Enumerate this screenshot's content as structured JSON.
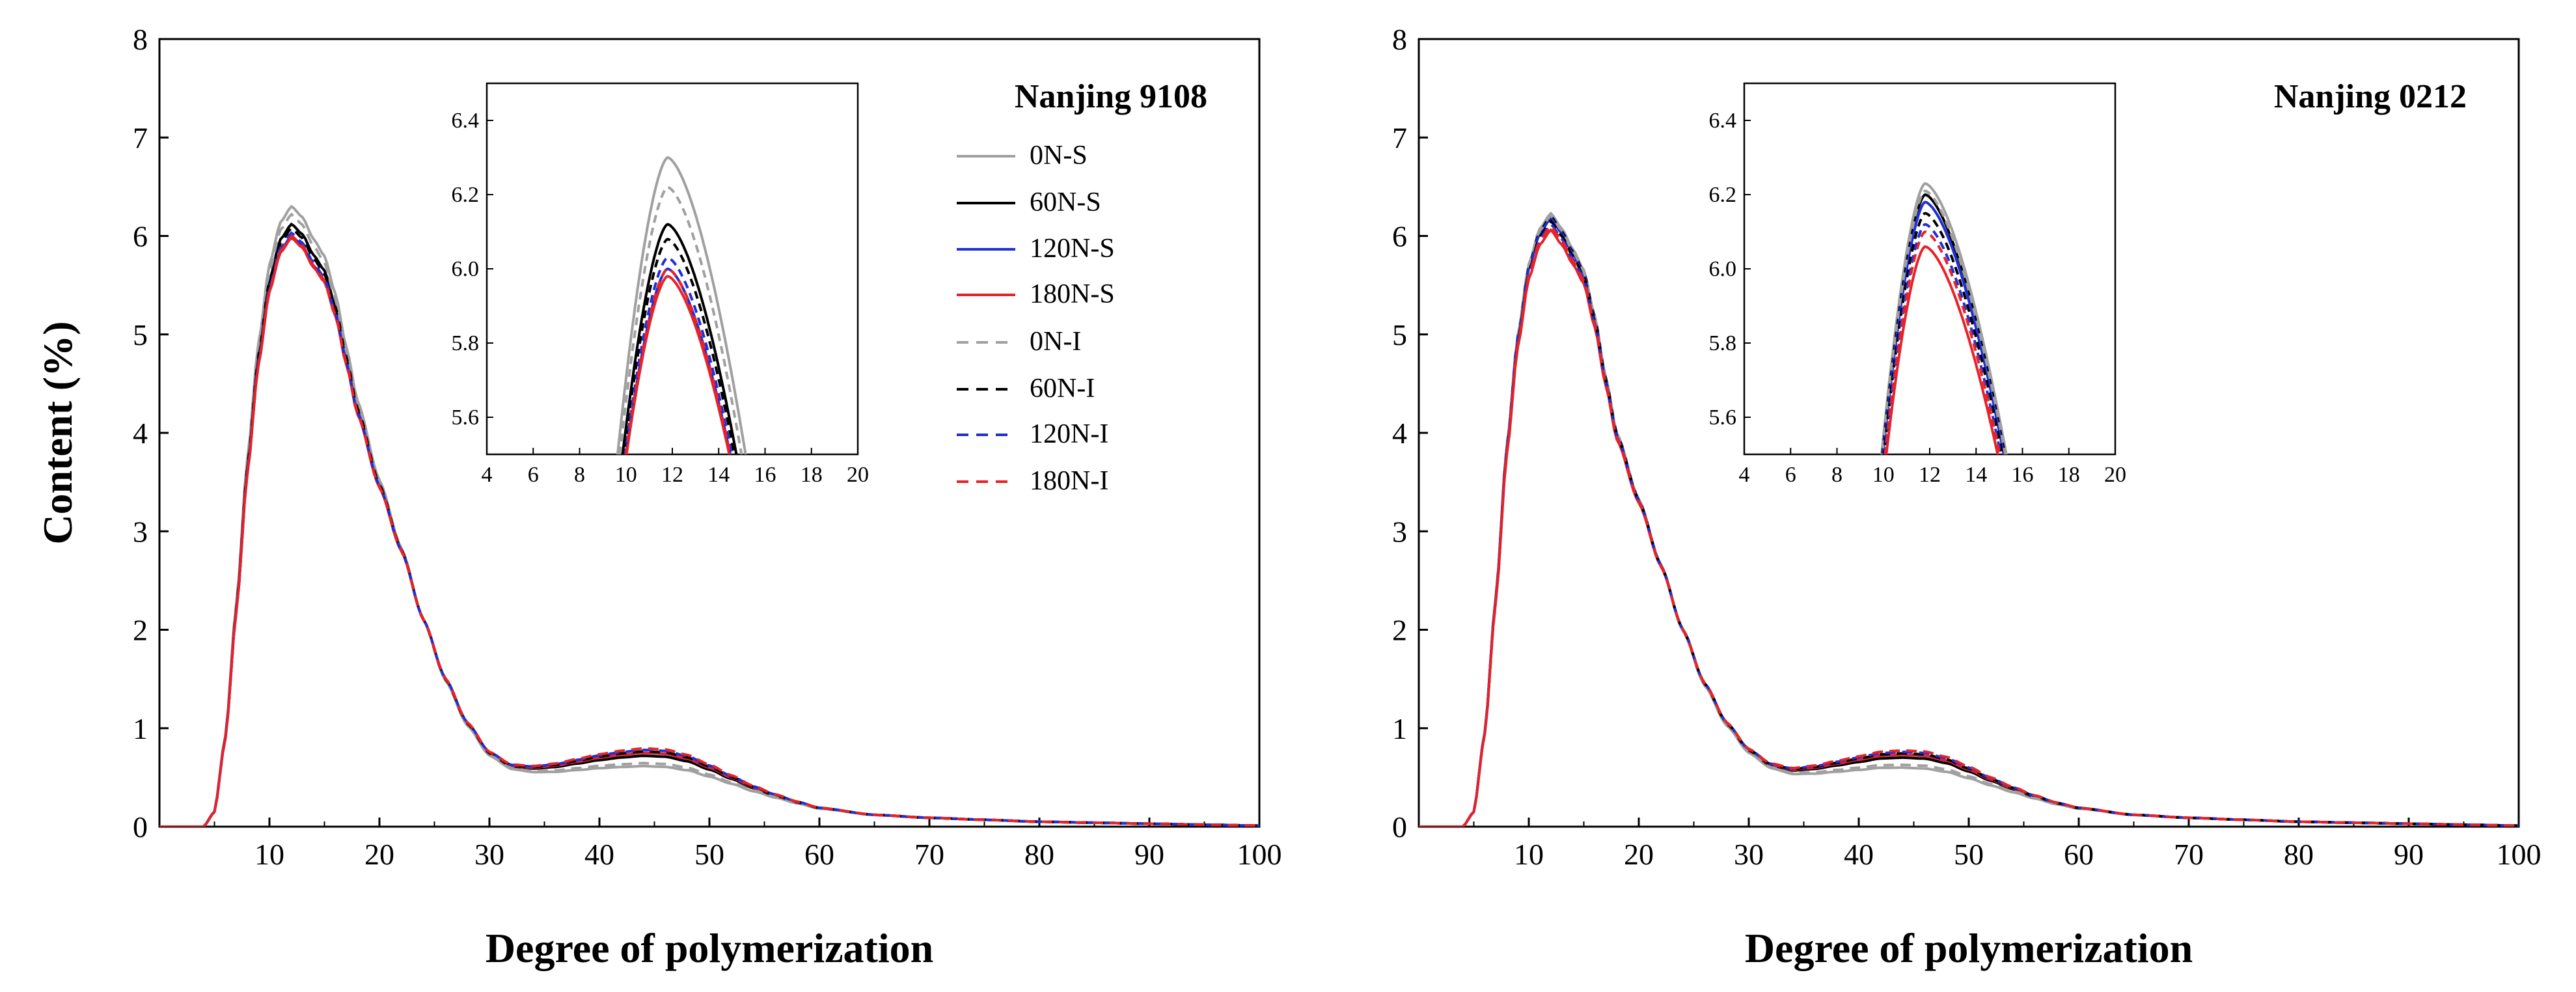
{
  "chart_data": [
    {
      "type": "line",
      "title": "Nanjing 9108",
      "xlabel": "Degree of polymerization",
      "ylabel": "Content (%)",
      "xlim": [
        0,
        100
      ],
      "ylim": [
        0,
        8
      ],
      "xticks": [
        10,
        20,
        30,
        40,
        50,
        60,
        70,
        80,
        90,
        100
      ],
      "yticks": [
        0,
        1,
        2,
        3,
        4,
        5,
        6,
        7,
        8
      ],
      "legend_position": "top-right",
      "legend": [
        {
          "label": "0N-S",
          "color": "#a0a0a0",
          "dash": "solid"
        },
        {
          "label": "60N-S",
          "color": "#000000",
          "dash": "solid"
        },
        {
          "label": "120N-S",
          "color": "#1f2fd6",
          "dash": "solid"
        },
        {
          "label": "180N-S",
          "color": "#e5232a",
          "dash": "solid"
        },
        {
          "label": "0N-I",
          "color": "#a0a0a0",
          "dash": "dashed"
        },
        {
          "label": "60N-I",
          "color": "#000000",
          "dash": "dashed"
        },
        {
          "label": "120N-I",
          "color": "#1f2fd6",
          "dash": "dashed"
        },
        {
          "label": "180N-I",
          "color": "#e5232a",
          "dash": "dashed"
        }
      ],
      "peak_values": {
        "0N-S": 6.3,
        "60N-S": 6.12,
        "120N-S": 6.0,
        "180N-S": 5.98,
        "0N-I": 6.22,
        "60N-I": 6.08,
        "120N-I": 6.03,
        "180N-I": 6.0
      },
      "x": [
        0,
        4,
        5,
        6,
        7,
        8,
        9,
        10,
        11,
        12,
        13,
        14,
        15,
        16,
        17,
        18,
        20,
        22,
        24,
        26,
        28,
        30,
        32,
        34,
        36,
        38,
        40,
        42,
        44,
        46,
        48,
        50,
        52,
        54,
        56,
        58,
        60,
        65,
        70,
        75,
        80,
        85,
        90,
        95,
        100
      ],
      "base_series": [
        0,
        0,
        0.15,
        0.9,
        2.2,
        3.6,
        4.7,
        5.45,
        5.85,
        6.0,
        5.9,
        5.7,
        5.55,
        5.2,
        4.7,
        4.2,
        3.45,
        2.8,
        2.1,
        1.5,
        1.05,
        0.75,
        0.62,
        0.6,
        0.62,
        0.66,
        0.7,
        0.73,
        0.75,
        0.74,
        0.69,
        0.6,
        0.5,
        0.4,
        0.32,
        0.25,
        0.19,
        0.12,
        0.09,
        0.07,
        0.05,
        0.04,
        0.03,
        0.02,
        0.01
      ],
      "inset": {
        "xlim": [
          4,
          20
        ],
        "ylim": [
          5.5,
          6.5
        ],
        "xticks": [
          4,
          6,
          8,
          10,
          12,
          14,
          16,
          18,
          20
        ],
        "yticks": [
          5.6,
          5.8,
          6.0,
          6.2,
          6.4
        ]
      }
    },
    {
      "type": "line",
      "title": "Nanjing 0212",
      "xlabel": "Degree of polymerization",
      "ylabel": "",
      "xlim": [
        0,
        100
      ],
      "ylim": [
        0,
        8
      ],
      "xticks": [
        10,
        20,
        30,
        40,
        50,
        60,
        70,
        80,
        90,
        100
      ],
      "yticks": [
        0,
        1,
        2,
        3,
        4,
        5,
        6,
        7,
        8
      ],
      "peak_values": {
        "0N-S": 6.23,
        "60N-S": 6.2,
        "120N-S": 6.18,
        "180N-S": 6.06,
        "0N-I": 6.21,
        "60N-I": 6.15,
        "120N-I": 6.12,
        "180N-I": 6.1
      },
      "x": [
        0,
        4,
        5,
        6,
        7,
        8,
        9,
        10,
        11,
        12,
        13,
        14,
        15,
        16,
        17,
        18,
        20,
        22,
        24,
        26,
        28,
        30,
        32,
        34,
        36,
        38,
        40,
        42,
        44,
        46,
        48,
        50,
        52,
        54,
        56,
        58,
        60,
        65,
        70,
        75,
        80,
        85,
        90,
        95,
        100
      ],
      "base_series": [
        0,
        0,
        0.15,
        0.95,
        2.3,
        3.8,
        4.9,
        5.6,
        5.95,
        6.1,
        5.95,
        5.75,
        5.55,
        5.1,
        4.5,
        3.95,
        3.3,
        2.65,
        2.0,
        1.45,
        1.05,
        0.78,
        0.63,
        0.58,
        0.6,
        0.64,
        0.68,
        0.72,
        0.73,
        0.72,
        0.67,
        0.58,
        0.48,
        0.39,
        0.31,
        0.24,
        0.19,
        0.12,
        0.09,
        0.07,
        0.05,
        0.04,
        0.03,
        0.02,
        0.01
      ],
      "inset": {
        "xlim": [
          4,
          20
        ],
        "ylim": [
          5.5,
          6.5
        ],
        "xticks": [
          4,
          6,
          8,
          10,
          12,
          14,
          16,
          18,
          20
        ],
        "yticks": [
          5.6,
          5.8,
          6.0,
          6.2,
          6.4
        ]
      }
    }
  ]
}
